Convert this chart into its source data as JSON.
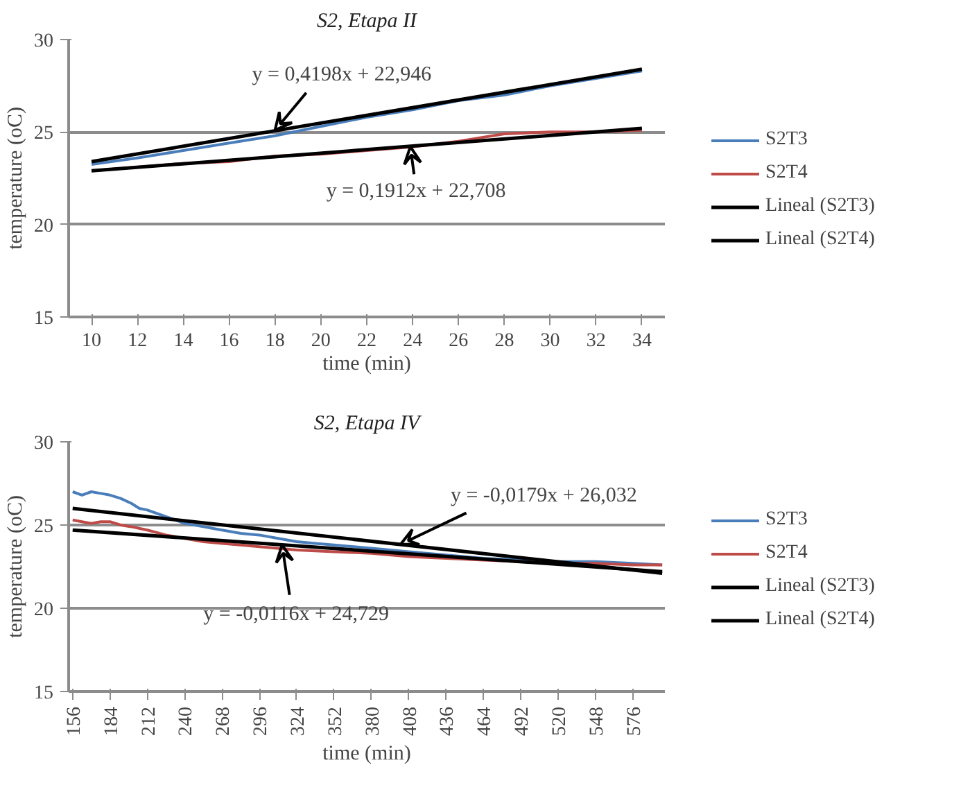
{
  "chart_data": [
    {
      "type": "line",
      "title": "S2, Etapa II",
      "xlabel": "time (min)",
      "ylabel": "temperature (oC)",
      "xlim": [
        9,
        35
      ],
      "xticks": [
        10,
        12,
        14,
        16,
        18,
        20,
        22,
        24,
        26,
        28,
        30,
        32,
        34
      ],
      "ylim": [
        15,
        30
      ],
      "yticks": [
        15,
        20,
        25,
        30
      ],
      "grid": "y",
      "legend": "right",
      "series": [
        {
          "name": "S2T3",
          "color": "#4a7ebb",
          "x": [
            10,
            12,
            14,
            16,
            18,
            20,
            22,
            24,
            26,
            28,
            30,
            32,
            34
          ],
          "values": [
            23.25,
            23.6,
            24.0,
            24.4,
            24.8,
            25.3,
            25.8,
            26.2,
            26.7,
            27.0,
            27.5,
            27.9,
            28.3
          ]
        },
        {
          "name": "S2T4",
          "color": "#be4b48",
          "x": [
            10,
            12,
            14,
            16,
            18,
            20,
            22,
            24,
            26,
            28,
            30,
            32,
            34
          ],
          "values": [
            22.9,
            23.1,
            23.3,
            23.4,
            23.7,
            23.8,
            24.0,
            24.2,
            24.5,
            24.9,
            25.0,
            25.0,
            25.1
          ]
        },
        {
          "name": "Lineal (S2T3)",
          "color": "#000000",
          "x": [
            10,
            34
          ],
          "values": [
            23.4,
            28.4
          ]
        },
        {
          "name": "Lineal (S2T4)",
          "color": "#000000",
          "x": [
            10,
            34
          ],
          "values": [
            22.9,
            25.2
          ]
        }
      ],
      "annotations": [
        {
          "text": "y = 0,4198x  + 22,946",
          "x": 18,
          "y": 25.1
        },
        {
          "text": "y = 0,1912x  + 22,708",
          "x": 23.9,
          "y": 24.2
        }
      ]
    },
    {
      "type": "line",
      "title": "S2, Etapa IV",
      "xlabel": "time (min)",
      "ylabel": "temperature (oC)",
      "xlim": [
        153,
        600
      ],
      "xticks": [
        156,
        184,
        212,
        240,
        268,
        296,
        324,
        352,
        380,
        408,
        436,
        464,
        492,
        520,
        548,
        576
      ],
      "ylim": [
        15,
        30
      ],
      "yticks": [
        15,
        20,
        25,
        30
      ],
      "grid": "y",
      "legend": "right",
      "series": [
        {
          "name": "S2T3",
          "color": "#4a7ebb",
          "x": [
            156,
            163,
            170,
            177,
            184,
            192,
            200,
            206,
            212,
            226,
            240,
            254,
            268,
            282,
            296,
            310,
            324,
            338,
            352,
            380,
            408,
            436,
            464,
            492,
            520,
            548,
            576,
            598
          ],
          "values": [
            27.0,
            26.8,
            27.0,
            26.9,
            26.8,
            26.6,
            26.3,
            26.0,
            25.9,
            25.5,
            25.1,
            24.9,
            24.7,
            24.5,
            24.4,
            24.2,
            24.0,
            23.9,
            23.8,
            23.6,
            23.4,
            23.2,
            23.0,
            22.9,
            22.8,
            22.8,
            22.7,
            22.6
          ]
        },
        {
          "name": "S2T4",
          "color": "#be4b48",
          "x": [
            156,
            163,
            170,
            177,
            184,
            192,
            200,
            212,
            226,
            240,
            254,
            268,
            282,
            296,
            324,
            352,
            380,
            408,
            436,
            464,
            492,
            520,
            548,
            576,
            598
          ],
          "values": [
            25.3,
            25.2,
            25.1,
            25.2,
            25.2,
            25.0,
            24.9,
            24.7,
            24.4,
            24.2,
            24.0,
            23.9,
            23.8,
            23.7,
            23.5,
            23.4,
            23.3,
            23.1,
            23.0,
            22.9,
            22.8,
            22.7,
            22.7,
            22.6,
            22.6
          ]
        },
        {
          "name": "Lineal (S2T3)",
          "color": "#000000",
          "x": [
            156,
            598
          ],
          "values": [
            26.0,
            22.1
          ]
        },
        {
          "name": "Lineal (S2T4)",
          "color": "#000000",
          "x": [
            156,
            598
          ],
          "values": [
            24.7,
            22.2
          ]
        }
      ],
      "annotations": [
        {
          "text": "y = -0,0179x  + 26,032",
          "x": 402,
          "y": 23.85
        },
        {
          "text": "y = -0,0116x  + 24,729",
          "x": 313,
          "y": 23.8
        }
      ]
    }
  ]
}
